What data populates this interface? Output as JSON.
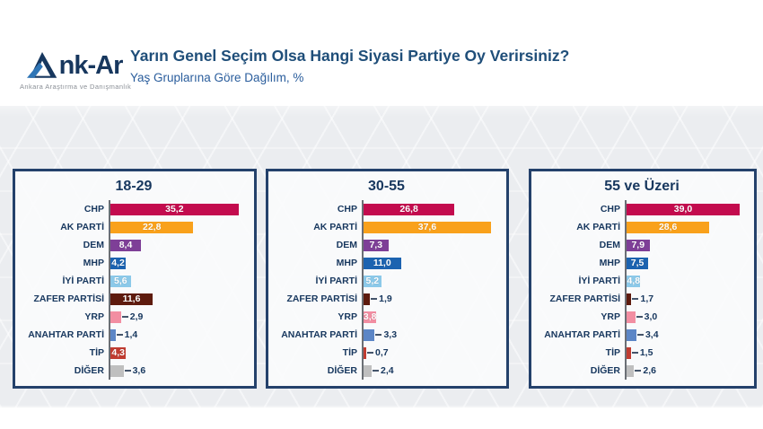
{
  "logo": {
    "name": "nk-Ar",
    "stylized_initial": "A",
    "tagline": "Ankara Araştırma ve Danışmanlık"
  },
  "header": {
    "title": "Yarın Genel Seçim Olsa Hangi Siyasi Partiye Oy Verirsiniz?",
    "subtitle": "Yaş Gruplarına Göre Dağılım, %"
  },
  "parties": [
    {
      "name": "CHP",
      "color": "#C30B4E"
    },
    {
      "name": "AK PARTİ",
      "color": "#F9A11B"
    },
    {
      "name": "DEM",
      "color": "#7E3F97"
    },
    {
      "name": "MHP",
      "color": "#1C63B0"
    },
    {
      "name": "İYİ PARTİ",
      "color": "#8CC9E9"
    },
    {
      "name": "ZAFER PARTİSİ",
      "color": "#5E1B0E"
    },
    {
      "name": "YRP",
      "color": "#F28EA2"
    },
    {
      "name": "ANAHTAR PARTİ",
      "color": "#5C86C6"
    },
    {
      "name": "TİP",
      "color": "#C03C31"
    },
    {
      "name": "DİĞER",
      "color": "#BFBFBF"
    }
  ],
  "chart_data": [
    {
      "type": "bar",
      "orientation": "horizontal",
      "title": "18-29",
      "categories": [
        "CHP",
        "AK PARTİ",
        "DEM",
        "MHP",
        "İYİ PARTİ",
        "ZAFER PARTİSİ",
        "YRP",
        "ANAHTAR PARTİ",
        "TİP",
        "DİĞER"
      ],
      "values": [
        35.2,
        22.8,
        8.4,
        4.2,
        5.6,
        11.6,
        2.9,
        1.4,
        4.3,
        3.6
      ],
      "value_labels": [
        "35,2",
        "22,8",
        "8,4",
        "4,2",
        "5,6",
        "11,6",
        "2,9",
        "1,4",
        "4,3",
        "3,6"
      ],
      "xlim": [
        0,
        37.5
      ]
    },
    {
      "type": "bar",
      "orientation": "horizontal",
      "title": "30-55",
      "categories": [
        "CHP",
        "AK PARTİ",
        "DEM",
        "MHP",
        "İYİ PARTİ",
        "ZAFER PARTİSİ",
        "YRP",
        "ANAHTAR PARTİ",
        "TİP",
        "DİĞER"
      ],
      "values": [
        26.8,
        37.6,
        7.3,
        11.0,
        5.2,
        1.9,
        3.8,
        3.3,
        0.7,
        2.4
      ],
      "value_labels": [
        "26,8",
        "37,6",
        "7,3",
        "11,0",
        "5,2",
        "1,9",
        "3,8",
        "3,3",
        "0,7",
        "2,4"
      ],
      "xlim": [
        0,
        40.0
      ]
    },
    {
      "type": "bar",
      "orientation": "horizontal",
      "title": "55 ve Üzeri",
      "categories": [
        "CHP",
        "AK PARTİ",
        "DEM",
        "MHP",
        "İYİ PARTİ",
        "ZAFER PARTİSİ",
        "YRP",
        "ANAHTAR PARTİ",
        "TİP",
        "DİĞER"
      ],
      "values": [
        39.0,
        28.6,
        7.9,
        7.5,
        4.8,
        1.7,
        3.0,
        3.4,
        1.5,
        2.6
      ],
      "value_labels": [
        "39,0",
        "28,6",
        "7,9",
        "7,5",
        "4,8",
        "1,7",
        "3,0",
        "3,4",
        "1,5",
        "2,6"
      ],
      "xlim": [
        0,
        41.5
      ]
    }
  ],
  "style": {
    "panel_border": "#24416B",
    "title_color": "#1F4E79",
    "label_color": "#17375E",
    "inside_label_threshold": 3.8
  }
}
